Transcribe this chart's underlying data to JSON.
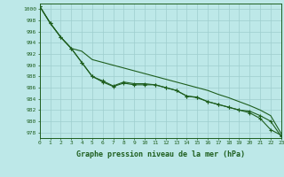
{
  "line_top": [
    1000.5,
    997.5,
    995.0,
    993.0,
    992.5,
    991.0,
    990.5,
    990.0,
    989.5,
    989.0,
    988.5,
    988.0,
    987.5,
    987.0,
    986.5,
    986.0,
    985.5,
    984.8,
    984.2,
    983.5,
    982.8,
    982.0,
    981.0,
    977.8
  ],
  "line_mid": [
    1000.5,
    997.5,
    995.0,
    993.0,
    990.5,
    988.0,
    987.2,
    986.3,
    987.0,
    986.7,
    986.7,
    986.5,
    986.0,
    985.5,
    984.5,
    984.3,
    983.5,
    983.0,
    982.5,
    982.0,
    981.5,
    980.5,
    978.5,
    977.5
  ],
  "line_bot": [
    1000.5,
    997.5,
    995.0,
    993.0,
    990.5,
    988.0,
    987.0,
    986.2,
    986.8,
    986.5,
    986.5,
    986.5,
    986.0,
    985.5,
    984.5,
    984.2,
    983.5,
    983.0,
    982.5,
    982.0,
    981.8,
    981.0,
    980.0,
    977.3
  ],
  "bg_color": "#bde8e8",
  "grid_color": "#9ecece",
  "line_color": "#1e5e1e",
  "xlabel": "Graphe pression niveau de la mer (hPa)",
  "ylim": [
    977,
    1001
  ],
  "xlim": [
    0,
    23
  ],
  "yticks": [
    978,
    980,
    982,
    984,
    986,
    988,
    990,
    992,
    994,
    996,
    998,
    1000
  ],
  "xticks": [
    0,
    1,
    2,
    3,
    4,
    5,
    6,
    7,
    8,
    9,
    10,
    11,
    12,
    13,
    14,
    15,
    16,
    17,
    18,
    19,
    20,
    21,
    22,
    23
  ]
}
